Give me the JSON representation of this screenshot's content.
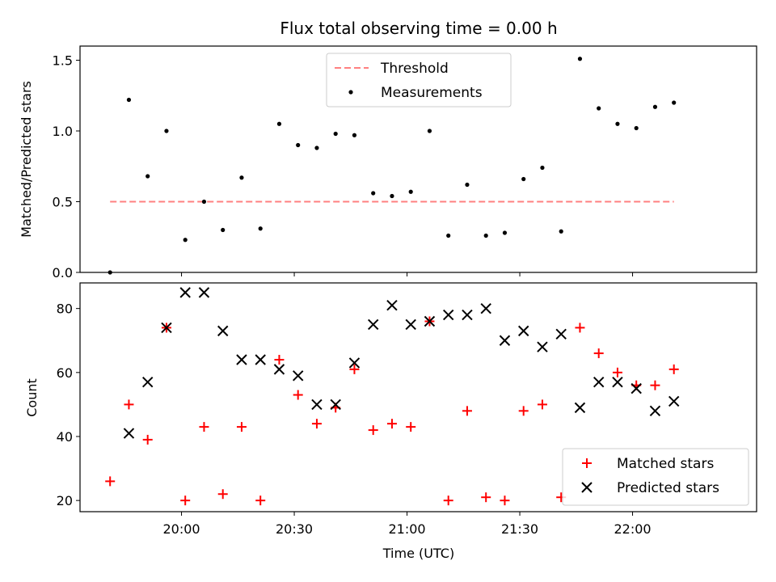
{
  "chart_data": [
    {
      "type": "scatter",
      "title": "Flux total observing time = 0.00 h",
      "xlabel": "",
      "ylabel": "Matched/Predicted stars",
      "ylim": [
        0,
        1.6
      ],
      "yticks": [
        "0.0",
        "0.5",
        "1.0",
        "1.5"
      ],
      "yticks_values": [
        0,
        0.5,
        1.0,
        1.5
      ],
      "legend_position": "top-center",
      "threshold": {
        "name": "Threshold",
        "value": 0.5,
        "color": "#ff8080",
        "style": "dashed"
      },
      "series": [
        {
          "name": "Measurements",
          "color": "#000000",
          "x": [
            "19:41",
            "19:46",
            "19:51",
            "19:56",
            "20:01",
            "20:06",
            "20:11",
            "20:16",
            "20:21",
            "20:26",
            "20:31",
            "20:36",
            "20:41",
            "20:46",
            "20:51",
            "20:56",
            "21:01",
            "21:06",
            "21:11",
            "21:16",
            "21:21",
            "21:26",
            "21:31",
            "21:36",
            "21:41",
            "21:46",
            "21:51",
            "21:56",
            "22:01",
            "22:06",
            "22:11"
          ],
          "y": [
            0.0,
            1.22,
            0.68,
            1.0,
            0.23,
            0.5,
            0.3,
            0.67,
            0.31,
            1.05,
            0.9,
            0.88,
            0.98,
            0.97,
            0.56,
            0.54,
            0.57,
            1.0,
            0.26,
            0.62,
            0.26,
            0.28,
            0.66,
            0.74,
            0.29,
            1.51,
            1.16,
            1.05,
            1.02,
            1.17,
            1.2
          ]
        }
      ]
    },
    {
      "type": "scatter",
      "title": "",
      "xlabel": "Time (UTC)",
      "ylabel": "Count",
      "ylim": [
        16.5,
        88
      ],
      "yticks": [
        "20",
        "40",
        "60",
        "80"
      ],
      "yticks_values": [
        20,
        40,
        60,
        80
      ],
      "xticks": [
        "20:00",
        "20:30",
        "21:00",
        "21:30",
        "22:00"
      ],
      "xticks_values": [
        "20:00",
        "20:30",
        "21:00",
        "21:30",
        "22:00"
      ],
      "xlim": [
        "19:33",
        "22:33"
      ],
      "legend_position": "bottom-right",
      "series": [
        {
          "name": "Matched stars",
          "marker": "plus",
          "color": "#ff0000",
          "x": [
            "19:41",
            "19:46",
            "19:51",
            "19:56",
            "20:01",
            "20:06",
            "20:11",
            "20:16",
            "20:21",
            "20:26",
            "20:31",
            "20:36",
            "20:41",
            "20:46",
            "20:51",
            "20:56",
            "21:01",
            "21:06",
            "21:11",
            "21:16",
            "21:21",
            "21:26",
            "21:31",
            "21:36",
            "21:41",
            "21:46",
            "21:51",
            "21:56",
            "22:01",
            "22:06",
            "22:11"
          ],
          "y": [
            26,
            50,
            39,
            74,
            20,
            43,
            22,
            43,
            20,
            64,
            53,
            44,
            49,
            61,
            42,
            44,
            43,
            76,
            20,
            48,
            21,
            20,
            48,
            50,
            21,
            74,
            66,
            60,
            56,
            56,
            61
          ]
        },
        {
          "name": "Predicted stars",
          "marker": "x",
          "color": "#000000",
          "x": [
            "19:46",
            "19:51",
            "19:56",
            "20:01",
            "20:06",
            "20:11",
            "20:16",
            "20:21",
            "20:26",
            "20:31",
            "20:36",
            "20:41",
            "20:46",
            "20:51",
            "20:56",
            "21:01",
            "21:06",
            "21:11",
            "21:16",
            "21:21",
            "21:26",
            "21:31",
            "21:36",
            "21:41",
            "21:46",
            "21:51",
            "21:56",
            "22:01",
            "22:06",
            "22:11"
          ],
          "y": [
            41,
            57,
            74,
            85,
            85,
            73,
            64,
            64,
            61,
            59,
            50,
            50,
            63,
            75,
            81,
            75,
            76,
            78,
            78,
            80,
            70,
            73,
            68,
            72,
            49,
            57,
            57,
            55,
            48,
            51
          ]
        }
      ]
    }
  ]
}
